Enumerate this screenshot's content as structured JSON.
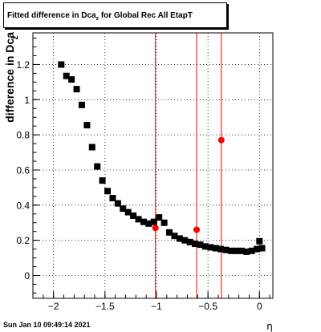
{
  "title": {
    "prefix": "Fitted difference in Dca",
    "subscript": "z",
    "suffix": " for Global Rec All EtapT"
  },
  "timestamp": "Sun Jan 10 09:49:14 2021",
  "chart_data": {
    "type": "scatter",
    "title": "Fitted difference in Dca_z for Global Rec All EtapT",
    "xlabel": "η",
    "ylabel": "difference in Dca_z",
    "xlim": [
      -2.2,
      0.13
    ],
    "ylim": [
      -0.13,
      1.38
    ],
    "grid": true,
    "x_ticks": [
      -2,
      -1.5,
      -1,
      -0.5,
      0
    ],
    "x_tick_labels": [
      "−2",
      "−1.5",
      "−1",
      "−0.5",
      "0"
    ],
    "y_ticks": [
      0,
      0.2,
      0.4,
      0.6,
      0.8,
      1,
      1.2
    ],
    "y_tick_labels": [
      "0",
      "0.2",
      "0.4",
      "0.6",
      "0.8",
      "1",
      "1.2"
    ],
    "series": [
      {
        "marker": "square",
        "color": "#000000",
        "points": [
          [
            -1.925,
            1.2
          ],
          [
            -1.875,
            1.135
          ],
          [
            -1.825,
            1.115
          ],
          [
            -1.775,
            1.06
          ],
          [
            -1.725,
            0.97
          ],
          [
            -1.675,
            0.855
          ],
          [
            -1.625,
            0.73
          ],
          [
            -1.575,
            0.62
          ],
          [
            -1.525,
            0.54
          ],
          [
            -1.475,
            0.48
          ],
          [
            -1.425,
            0.44
          ],
          [
            -1.375,
            0.41
          ],
          [
            -1.325,
            0.38
          ],
          [
            -1.275,
            0.36
          ],
          [
            -1.225,
            0.34
          ],
          [
            -1.175,
            0.32
          ],
          [
            -1.125,
            0.305
          ],
          [
            -1.075,
            0.295
          ],
          [
            -1.025,
            0.305
          ],
          [
            -0.975,
            0.33
          ],
          [
            -0.925,
            0.3
          ],
          [
            -0.875,
            0.245
          ],
          [
            -0.825,
            0.225
          ],
          [
            -0.775,
            0.21
          ],
          [
            -0.725,
            0.2
          ],
          [
            -0.675,
            0.19
          ],
          [
            -0.625,
            0.18
          ],
          [
            -0.575,
            0.175
          ],
          [
            -0.525,
            0.165
          ],
          [
            -0.475,
            0.16
          ],
          [
            -0.425,
            0.155
          ],
          [
            -0.375,
            0.15
          ],
          [
            -0.325,
            0.145
          ],
          [
            -0.275,
            0.14
          ],
          [
            -0.225,
            0.14
          ],
          [
            -0.175,
            0.14
          ],
          [
            -0.125,
            0.135
          ],
          [
            -0.075,
            0.14
          ],
          [
            -0.025,
            0.15
          ],
          [
            0.025,
            0.155
          ],
          [
            0.0,
            0.195
          ]
        ]
      },
      {
        "marker": "circle",
        "color": "#ff0000",
        "points": [
          [
            -1.01,
            0.27
          ],
          [
            -0.61,
            0.26
          ],
          [
            -0.37,
            0.77
          ]
        ]
      }
    ],
    "vertical_lines": {
      "color": "#ff0000",
      "x": [
        -1.01,
        -0.61,
        -0.37
      ]
    }
  }
}
